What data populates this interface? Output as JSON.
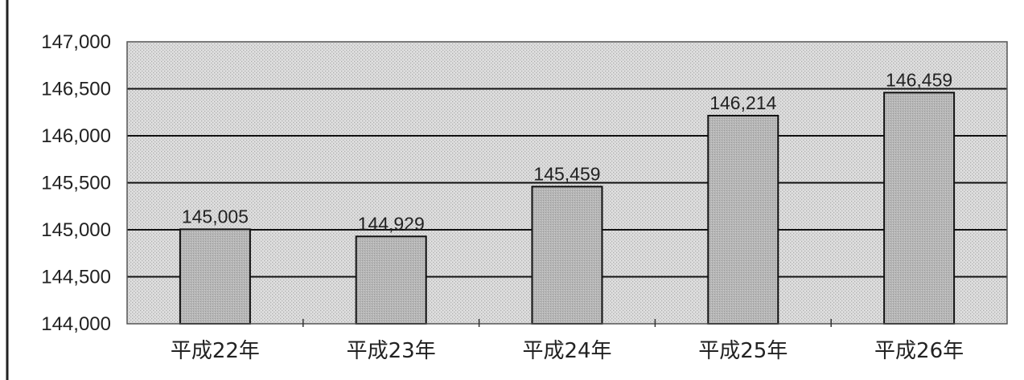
{
  "chart_data": {
    "type": "bar",
    "categories": [
      "平成22年",
      "平成23年",
      "平成24年",
      "平成25年",
      "平成26年"
    ],
    "values": [
      145005,
      144929,
      145459,
      146214,
      146459
    ],
    "value_labels": [
      "145,005",
      "144,929",
      "145,459",
      "146,214",
      "146,459"
    ],
    "ylim": [
      144000,
      147000
    ],
    "yticks": [
      144000,
      144500,
      145000,
      145500,
      146000,
      146500,
      147000
    ],
    "ytick_labels": [
      "144,000",
      "144,500",
      "145,000",
      "145,500",
      "146,000",
      "146,500",
      "147,000"
    ],
    "grid": true,
    "title": "",
    "xlabel": "",
    "ylabel": "",
    "colors": {
      "bar_fill": "#b4b4b4",
      "plot_background": "#d6d6d6",
      "gridline": "#111111",
      "frame": "#555555"
    }
  }
}
